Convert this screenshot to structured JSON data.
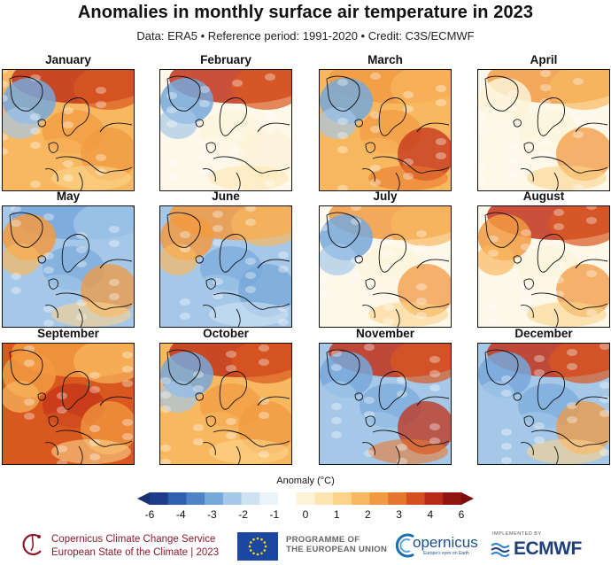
{
  "header": {
    "title": "Anomalies in monthly surface air temperature in 2023",
    "subtitle": "Data: ERA5 • Reference period: 1991-2020 • Credit: C3S/ECMWF"
  },
  "panels": [
    {
      "month": "January",
      "pattern": {
        "north": "warm-strong",
        "west": "cold",
        "center": "warm",
        "southeast": "warm"
      }
    },
    {
      "month": "February",
      "pattern": {
        "north": "warm-strong",
        "west": "cold",
        "center": "neutral",
        "southeast": "neutral"
      }
    },
    {
      "month": "March",
      "pattern": {
        "north": "warm",
        "west": "cold",
        "center": "warm",
        "southeast": "warm-strong"
      }
    },
    {
      "month": "April",
      "pattern": {
        "north": "warm",
        "west": "neutral",
        "center": "neutral",
        "southeast": "warm"
      }
    },
    {
      "month": "May",
      "pattern": {
        "north": "cold",
        "west": "warm",
        "center": "cold",
        "southeast": "warm"
      }
    },
    {
      "month": "June",
      "pattern": {
        "north": "warm",
        "west": "warm",
        "center": "cold",
        "southeast": "cold"
      }
    },
    {
      "month": "July",
      "pattern": {
        "north": "warm",
        "west": "cold",
        "center": "neutral",
        "southeast": "warm"
      }
    },
    {
      "month": "August",
      "pattern": {
        "north": "warm-strong",
        "west": "warm",
        "center": "neutral",
        "southeast": "warm"
      }
    },
    {
      "month": "September",
      "pattern": {
        "north": "warm",
        "west": "warm",
        "center": "warm-strong",
        "southeast": "warm"
      }
    },
    {
      "month": "October",
      "pattern": {
        "north": "warm-strong",
        "west": "cold",
        "center": "warm",
        "southeast": "warm"
      }
    },
    {
      "month": "November",
      "pattern": {
        "north": "warm-strong",
        "west": "cold",
        "center": "cold",
        "southeast": "warm-strong"
      }
    },
    {
      "month": "December",
      "pattern": {
        "north": "warm-strong",
        "west": "cold",
        "center": "cold",
        "southeast": "warm"
      }
    }
  ],
  "colorbar": {
    "title": "Anomaly (°C)",
    "ticks": [
      "-6",
      "-4",
      "-3",
      "-2",
      "-1",
      "0",
      "1",
      "2",
      "3",
      "4",
      "6"
    ],
    "colors": [
      "#1f3c8c",
      "#2f5fb0",
      "#4f83c8",
      "#77a8da",
      "#a5c8e8",
      "#cfe2f3",
      "#eaf2fa",
      "#ffffff",
      "#fdf3d8",
      "#fde6b3",
      "#fbd48a",
      "#f8b860",
      "#f29a42",
      "#e5762e",
      "#d4501f",
      "#b72a17",
      "#8f1310"
    ],
    "cold_end": "#1a2f6e",
    "warm_end": "#7e0c0c"
  },
  "footer": {
    "c3s_line1": "Copernicus Climate Change Service",
    "c3s_line2": "European State of the Climate | 2023",
    "eu_line1": "PROGRAMME OF",
    "eu_line2": "THE EUROPEAN UNION",
    "copernicus": "opernicus",
    "copernicus_sub": "Europe's eyes on Earth",
    "ecmwf_impl": "IMPLEMENTED BY",
    "ecmwf": "ECMWF"
  }
}
